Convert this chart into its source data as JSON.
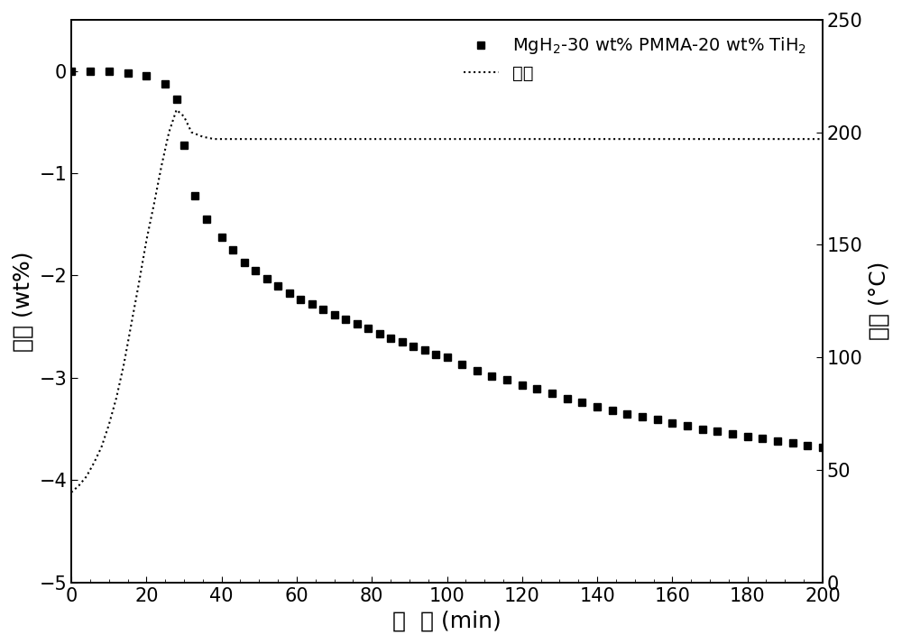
{
  "weight_time": [
    0,
    5,
    10,
    15,
    20,
    25,
    28,
    30,
    33,
    36,
    40,
    43,
    46,
    49,
    52,
    55,
    58,
    61,
    64,
    67,
    70,
    73,
    76,
    79,
    82,
    85,
    88,
    91,
    94,
    97,
    100,
    104,
    108,
    112,
    116,
    120,
    124,
    128,
    132,
    136,
    140,
    144,
    148,
    152,
    156,
    160,
    164,
    168,
    172,
    176,
    180,
    184,
    188,
    192,
    196,
    200
  ],
  "weight_values": [
    0.0,
    0.0,
    0.0,
    -0.02,
    -0.05,
    -0.13,
    -0.28,
    -0.73,
    -1.22,
    -1.45,
    -1.63,
    -1.75,
    -1.87,
    -1.95,
    -2.03,
    -2.1,
    -2.17,
    -2.23,
    -2.28,
    -2.33,
    -2.38,
    -2.43,
    -2.47,
    -2.52,
    -2.57,
    -2.61,
    -2.65,
    -2.69,
    -2.73,
    -2.77,
    -2.8,
    -2.87,
    -2.93,
    -2.98,
    -3.02,
    -3.07,
    -3.11,
    -3.15,
    -3.2,
    -3.24,
    -3.28,
    -3.32,
    -3.35,
    -3.38,
    -3.41,
    -3.44,
    -3.47,
    -3.5,
    -3.52,
    -3.55,
    -3.57,
    -3.59,
    -3.62,
    -3.64,
    -3.66,
    -3.68
  ],
  "temp_time": [
    0,
    2,
    4,
    6,
    8,
    10,
    12,
    14,
    16,
    18,
    20,
    22,
    24,
    26,
    28,
    30,
    32,
    35,
    38,
    42,
    46,
    52,
    60,
    75,
    90,
    110,
    130,
    150,
    170,
    190,
    200
  ],
  "temp_values": [
    40,
    43,
    47,
    53,
    60,
    70,
    82,
    97,
    115,
    133,
    152,
    168,
    185,
    200,
    210,
    207,
    200,
    198,
    197,
    197,
    197,
    197,
    197,
    197,
    197,
    197,
    197,
    197,
    197,
    197,
    197
  ],
  "xlabel": "时  间 (min)",
  "ylabel_left": "重量 (wt%)",
  "ylabel_right": "温度 (°C)",
  "legend_weight": "MgH$_2$-30 wt% PMMA-20 wt% TiH$_2$",
  "legend_temp": "温度",
  "xlim": [
    0,
    200
  ],
  "ylim_left": [
    -5,
    0.5
  ],
  "ylim_right": [
    0,
    250
  ],
  "yticks_left": [
    -5,
    -4,
    -3,
    -2,
    -1,
    0
  ],
  "yticks_right": [
    0,
    50,
    100,
    150,
    200,
    250
  ],
  "xticks": [
    0,
    20,
    40,
    60,
    80,
    100,
    120,
    140,
    160,
    180,
    200
  ],
  "line_color": "#000000",
  "bg_color": "#ffffff",
  "fontsize_label": 18,
  "fontsize_tick": 15,
  "fontsize_legend": 14
}
